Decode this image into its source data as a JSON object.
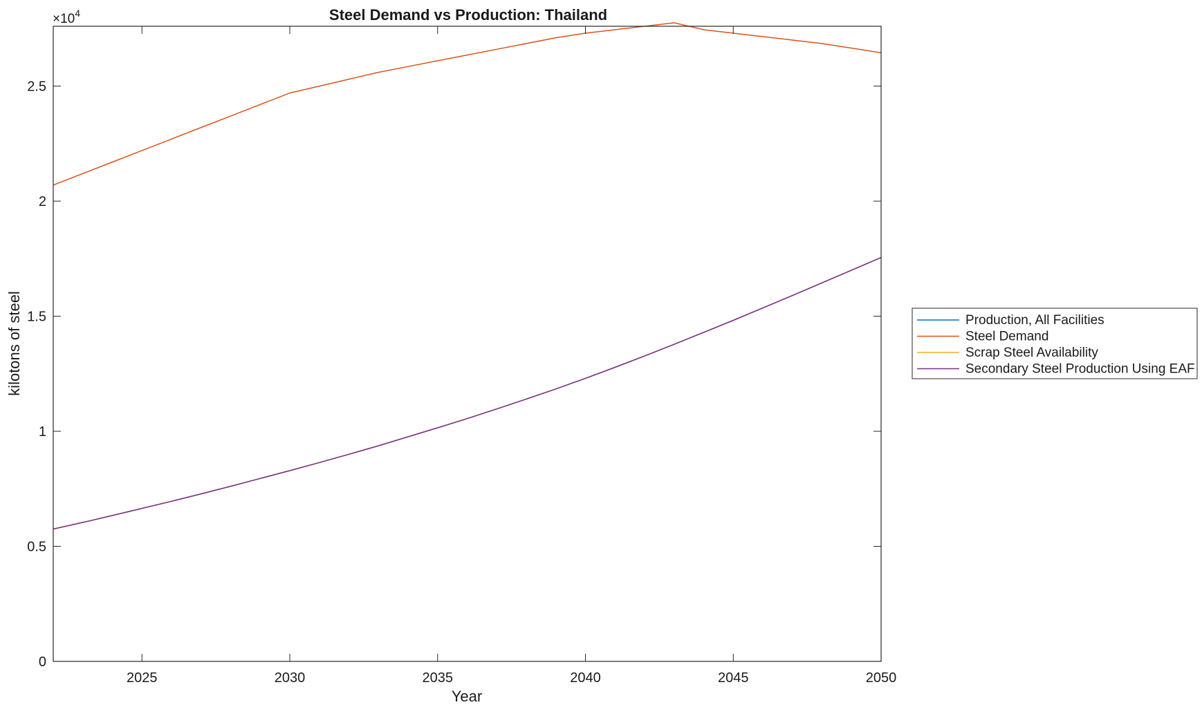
{
  "chart_data": {
    "type": "line",
    "title": "Steel Demand vs Production: Thailand",
    "xlabel": "Year",
    "ylabel": "kilotons of steel",
    "y_exponent_label": "×10",
    "y_exponent_power": "4",
    "xlim": [
      2022,
      2050
    ],
    "ylim": [
      0,
      2.76
    ],
    "x_ticks": [
      2025,
      2030,
      2035,
      2040,
      2045,
      2050
    ],
    "x_tick_labels": [
      "2025",
      "2030",
      "2035",
      "2040",
      "2045",
      "2050"
    ],
    "y_ticks": [
      0,
      0.5,
      1,
      1.5,
      2,
      2.5
    ],
    "y_tick_labels": [
      "0",
      "0.5",
      "1",
      "1.5",
      "2",
      "2.5"
    ],
    "grid": false,
    "legend_position": "outside-right",
    "x": [
      2022,
      2023,
      2024,
      2025,
      2026,
      2027,
      2028,
      2029,
      2030,
      2031,
      2032,
      2033,
      2034,
      2035,
      2036,
      2037,
      2038,
      2039,
      2040,
      2041,
      2042,
      2043,
      2044,
      2045,
      2046,
      2047,
      2048,
      2049,
      2050
    ],
    "series": [
      {
        "name": "Production, All Facilities",
        "color": "#0072BD",
        "values": [
          0.575,
          0.604,
          0.634,
          0.665,
          0.696,
          0.728,
          0.761,
          0.795,
          0.829,
          0.864,
          0.9,
          0.937,
          0.976,
          1.015,
          1.055,
          1.097,
          1.14,
          1.184,
          1.23,
          1.278,
          1.327,
          1.378,
          1.43,
          1.482,
          1.536,
          1.59,
          1.645,
          1.7,
          1.755
        ]
      },
      {
        "name": "Steel Demand",
        "color": "#D95319",
        "values": [
          2.07,
          2.12,
          2.17,
          2.22,
          2.27,
          2.32,
          2.37,
          2.42,
          2.47,
          2.5,
          2.53,
          2.56,
          2.585,
          2.61,
          2.635,
          2.66,
          2.685,
          2.71,
          2.73,
          2.745,
          2.76,
          2.775,
          2.745,
          2.73,
          2.715,
          2.7,
          2.685,
          2.665,
          2.645
        ]
      },
      {
        "name": "Scrap Steel Availability",
        "color": "#EDB120",
        "values": [
          0.575,
          0.604,
          0.634,
          0.665,
          0.696,
          0.728,
          0.761,
          0.795,
          0.829,
          0.864,
          0.9,
          0.937,
          0.976,
          1.015,
          1.055,
          1.097,
          1.14,
          1.184,
          1.23,
          1.278,
          1.327,
          1.378,
          1.43,
          1.482,
          1.536,
          1.59,
          1.645,
          1.7,
          1.755
        ]
      },
      {
        "name": "Secondary Steel Production Using EAF",
        "color": "#7E2F8E",
        "values": [
          0.575,
          0.604,
          0.634,
          0.665,
          0.696,
          0.728,
          0.761,
          0.795,
          0.829,
          0.864,
          0.9,
          0.937,
          0.976,
          1.015,
          1.055,
          1.097,
          1.14,
          1.184,
          1.23,
          1.278,
          1.327,
          1.378,
          1.43,
          1.482,
          1.536,
          1.59,
          1.645,
          1.7,
          1.755
        ]
      }
    ]
  }
}
